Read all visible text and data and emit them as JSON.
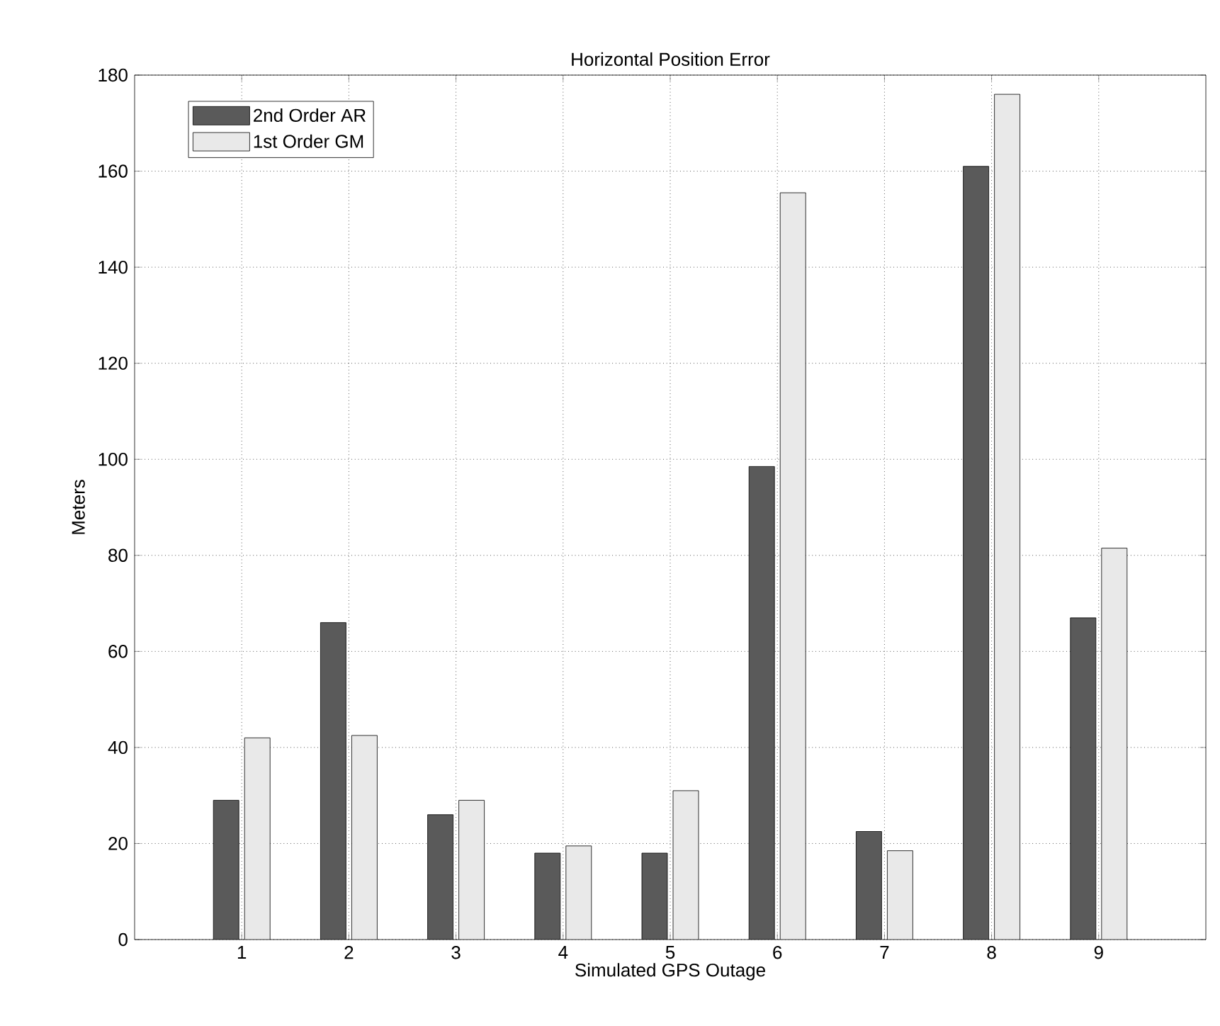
{
  "chart_data": {
    "type": "bar",
    "title": "Horizontal Position Error",
    "xlabel": "Simulated GPS Outage",
    "ylabel": "Meters",
    "categories": [
      "1",
      "2",
      "3",
      "4",
      "5",
      "6",
      "7",
      "8",
      "9"
    ],
    "series": [
      {
        "name": "2nd Order AR",
        "color": "#5a5a5a",
        "values": [
          29,
          66,
          26,
          18,
          18,
          98.5,
          22.5,
          161,
          67
        ]
      },
      {
        "name": "1st Order GM",
        "color": "#e9e9e9",
        "values": [
          42,
          42.5,
          29,
          19.5,
          31,
          155.5,
          18.5,
          176,
          81.5
        ]
      }
    ],
    "ylim": [
      0,
      180
    ],
    "yticks": [
      0,
      20,
      40,
      60,
      80,
      100,
      120,
      140,
      160,
      180
    ],
    "grid": true,
    "legend": "top left"
  }
}
